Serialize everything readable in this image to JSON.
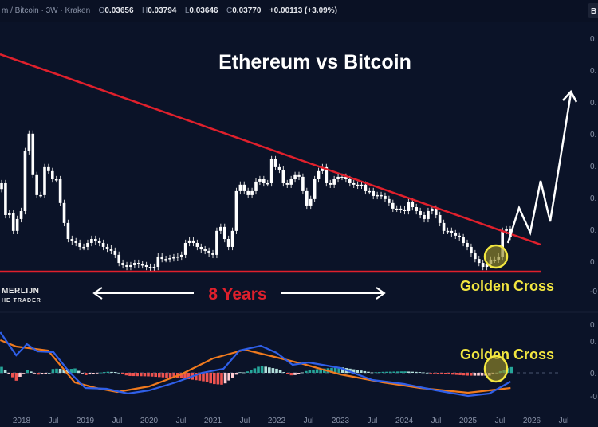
{
  "header": {
    "symbol": "m / Bitcoin · 3W · Kraken",
    "o_label": "O",
    "o": "0.03656",
    "h_label": "H",
    "h": "0.03794",
    "l_label": "L",
    "l": "0.03646",
    "c_label": "C",
    "c": "0.03770",
    "change": "+0.00113 (+3.09%)",
    "corner_button": "B"
  },
  "annotations": {
    "title": "Ethereum vs Bitcoin",
    "span_label": "8 Years",
    "golden_cross_price": "Golden Cross",
    "golden_cross_macd": "Golden Cross",
    "logo_line1": "MERLIJN",
    "logo_line2": "HE TRADER"
  },
  "colors": {
    "background": "#0b1328",
    "candle": "#ffffff",
    "trendline": "#e0202c",
    "highlight": "#f2e640",
    "macd_line": "#2f5fe8",
    "signal_line": "#f07a1e",
    "hist_pos": "#26a69a",
    "hist_pos_weak": "#b2dfdb",
    "hist_neg": "#ef5350",
    "hist_neg_weak": "#ffcdd2"
  },
  "price_axis_labels": [
    "0.",
    "0.",
    "0.",
    "0.",
    "0.",
    "0.",
    "0.",
    "0.",
    "-0"
  ],
  "macd_axis_labels": [
    "0.",
    "0.",
    "0.",
    "-0"
  ],
  "x_axis_labels": [
    "2018",
    "Jul",
    "2019",
    "Jul",
    "2020",
    "Jul",
    "2021",
    "Jul",
    "2022",
    "Jul",
    "2023",
    "Jul",
    "2024",
    "Jul",
    "2025",
    "Jul",
    "2026",
    "Jul"
  ],
  "chart_data": [
    {
      "type": "candlestick",
      "title": "Ethereum vs Bitcoin",
      "timeframe": "3W",
      "scale": "linear",
      "ylim": [
        0.017,
        0.1
      ],
      "x_range": [
        "2017-09",
        "2025-09"
      ],
      "closes": [
        0.0701,
        0.0508,
        0.0518,
        0.0412,
        0.0484,
        0.0532,
        0.0895,
        0.1001,
        0.075,
        0.0629,
        0.0629,
        0.0798,
        0.0774,
        0.0725,
        0.0725,
        0.0581,
        0.046,
        0.0363,
        0.0349,
        0.0339,
        0.0315,
        0.0315,
        0.0339,
        0.0363,
        0.0349,
        0.0339,
        0.0315,
        0.0305,
        0.0291,
        0.0267,
        0.0218,
        0.0204,
        0.0194,
        0.0204,
        0.0218,
        0.0209,
        0.0204,
        0.0194,
        0.0189,
        0.0194,
        0.0257,
        0.0242,
        0.0242,
        0.0247,
        0.0252,
        0.0257,
        0.0267,
        0.0339,
        0.0354,
        0.0339,
        0.0315,
        0.03,
        0.0291,
        0.0276,
        0.0267,
        0.0412,
        0.0436,
        0.0363,
        0.0315,
        0.0412,
        0.0653,
        0.0692,
        0.0653,
        0.0629,
        0.0653,
        0.0711,
        0.0725,
        0.0701,
        0.0701,
        0.0846,
        0.0798,
        0.0783,
        0.0701,
        0.0692,
        0.0725,
        0.075,
        0.074,
        0.0653,
        0.0566,
        0.0605,
        0.0725,
        0.0774,
        0.0798,
        0.0701,
        0.0692,
        0.0725,
        0.074,
        0.074,
        0.0725,
        0.0701,
        0.0692,
        0.0687,
        0.0692,
        0.0653,
        0.0653,
        0.0624,
        0.0629,
        0.0624,
        0.0605,
        0.0581,
        0.0547,
        0.0547,
        0.0542,
        0.0532,
        0.059,
        0.0556,
        0.0532,
        0.0508,
        0.0484,
        0.0532,
        0.0547,
        0.0508,
        0.046,
        0.0412,
        0.0412,
        0.0397,
        0.0383,
        0.0373,
        0.0339,
        0.0315,
        0.0276,
        0.0242,
        0.0218,
        0.0194,
        0.0209,
        0.0238,
        0.0238,
        0.0257,
        0.0412,
        0.0421,
        0.0377
      ],
      "trendline_resistance": "descending",
      "support_level": 0.0185,
      "projection": "up"
    },
    {
      "type": "line",
      "indicator": "MACD",
      "series": [
        {
          "role": "macd",
          "x_dates": [
            "2017-09",
            "2017-12",
            "2018-02",
            "2018-04",
            "2018-07",
            "2018-10",
            "2019-01",
            "2019-05",
            "2019-09",
            "2020-01",
            "2020-06",
            "2020-11",
            "2021-03",
            "2021-06",
            "2021-10",
            "2022-01",
            "2022-04",
            "2022-07",
            "2023-01",
            "2023-07",
            "2024-01",
            "2024-07",
            "2025-01",
            "2025-05",
            "2025-09"
          ],
          "values": [
            0.0051,
            0.0022,
            0.0036,
            0.0027,
            0.0026,
            0.0001,
            -0.0019,
            -0.002,
            -0.0026,
            -0.0022,
            -0.0012,
            0,
            0.0005,
            0.0028,
            0.0034,
            0.0025,
            0.001,
            0.0013,
            0.0006,
            -0.0009,
            -0.0014,
            -0.0022,
            -0.0029,
            -0.0026,
            -0.0011
          ]
        },
        {
          "role": "signal",
          "x_dates": [
            "2017-09",
            "2017-12",
            "2018-06",
            "2018-11",
            "2019-03",
            "2019-07",
            "2020-01",
            "2020-07",
            "2021-01",
            "2021-07",
            "2021-12",
            "2022-06",
            "2023-01",
            "2023-09",
            "2024-04",
            "2025-01",
            "2025-09"
          ],
          "values": [
            0.0041,
            0.0033,
            0.0028,
            -0.0012,
            -0.0019,
            -0.0024,
            -0.0017,
            -0.0002,
            0.0018,
            0.0029,
            0.0021,
            0.0011,
            -0.0002,
            -0.0012,
            -0.0019,
            -0.0025,
            -0.0019
          ]
        }
      ],
      "histogram": "macd minus signal",
      "zero_line": true
    }
  ]
}
